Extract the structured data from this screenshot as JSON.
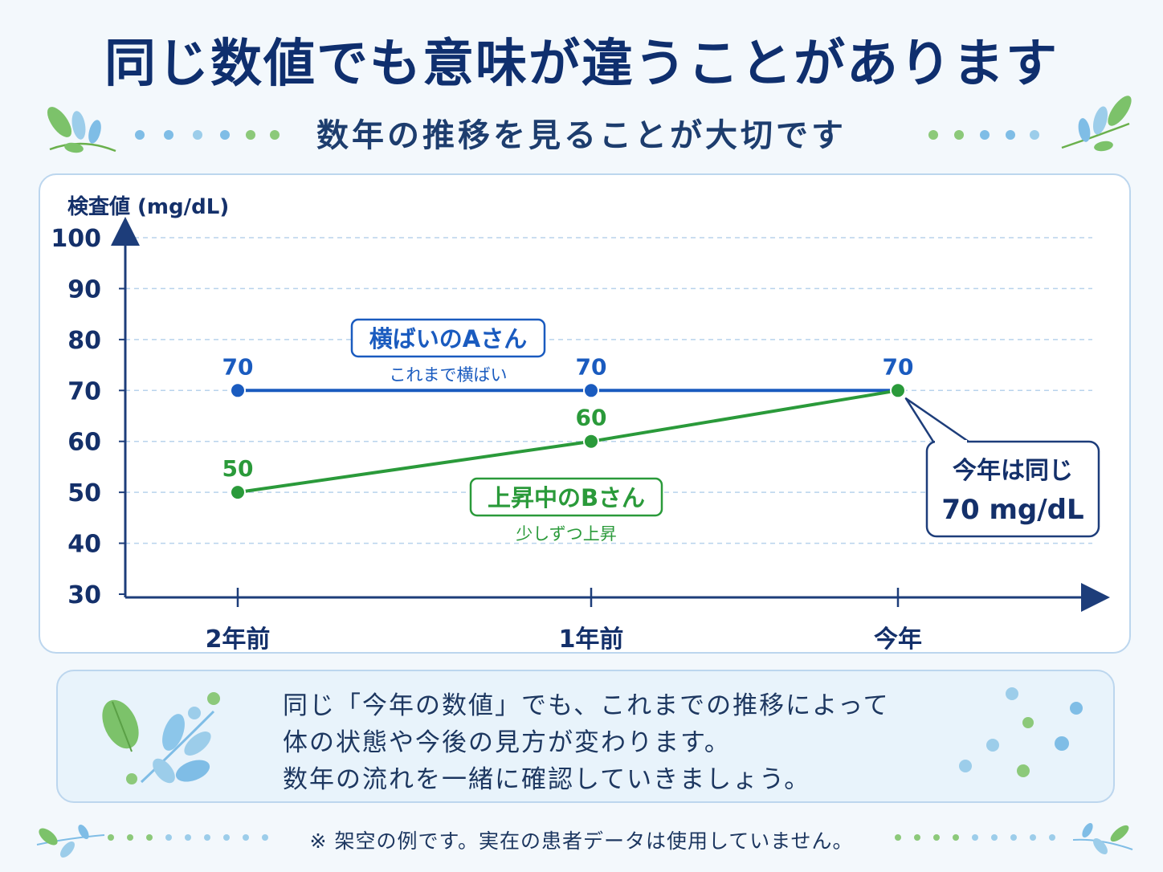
{
  "header": {
    "title": "同じ数値でも意味が違うことがあります",
    "subtitle": "数年の推移を見ることが大切です"
  },
  "chart_data": {
    "type": "line",
    "ylabel": "検査値 (mg/dL)",
    "xlabel": "",
    "ylim": [
      30,
      100
    ],
    "yticks": [
      30,
      40,
      50,
      60,
      70,
      80,
      90,
      100
    ],
    "grid": true,
    "categories": [
      "2年前",
      "1年前",
      "今年"
    ],
    "series": [
      {
        "name": "横ばいのAさん",
        "caption": "これまで横ばい",
        "color": "#1a5bbf",
        "values": [
          70,
          70,
          70
        ],
        "labels": [
          "70",
          "70",
          "70"
        ]
      },
      {
        "name": "上昇中のBさん",
        "caption": "少しずつ上昇",
        "color": "#2a9a3a",
        "values": [
          50,
          60,
          70
        ],
        "labels": [
          "50",
          "60",
          ""
        ]
      }
    ],
    "callout": {
      "line1": "今年は同じ",
      "line2": "70 mg/dL"
    }
  },
  "note": {
    "lines": [
      "同じ「今年の数値」でも、これまでの推移によって",
      "体の状態や今後の見方が変わります。",
      "数年の流れを一緒に確認していきましょう。"
    ]
  },
  "footnote": "※ 架空の例です。実在の患者データは使用していません。",
  "colors": {
    "primary_blue": "#1a5bbf",
    "primary_green": "#2a9a3a",
    "title_navy": "#0f2f6e",
    "axis_navy": "#1d3d7a"
  }
}
